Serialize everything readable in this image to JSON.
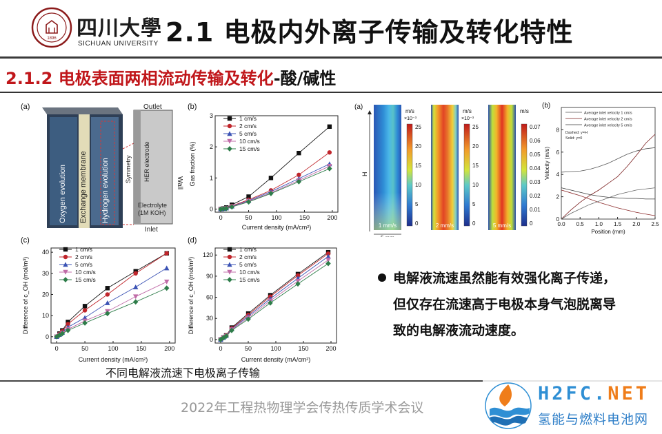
{
  "header": {
    "logo_cn": "四川大學",
    "logo_en": "SICHUAN UNIVERSITY",
    "seal_year": "1896",
    "title": "2.1 电极内外离子传输及转化特性"
  },
  "subtitle": {
    "red_part": "2.1.2 电极表面两相流动传输及转化",
    "dark_part": "-酸/碱性"
  },
  "figure_a": {
    "panel": "(a)",
    "labels": [
      "Oxygen evolution",
      "Exchange membrane",
      "Hydrogen evolution"
    ],
    "schematic": {
      "outlet": "Outlet",
      "inlet": "Inlet",
      "symmetry": "Symmetry",
      "electrode": "HER electrode",
      "wall": "Wall",
      "electrolyte_1": "Electrolyte",
      "electrolyte_2": "(1M KOH)"
    }
  },
  "legend_series": [
    "1 cm/s",
    "2 cm/s",
    "5 cm/s",
    "10 cm/s",
    "15 cm/s"
  ],
  "series_colors": [
    "#111111",
    "#c0252b",
    "#3a52b4",
    "#c06ca8",
    "#2e7d4a"
  ],
  "chart_data": [
    {
      "panel": "(b)",
      "type": "line",
      "xlabel": "Current density (mA/cm²)",
      "ylabel": "Gas fraction (%)",
      "xlim": [
        -10,
        210
      ],
      "ylim": [
        -0.1,
        3.0
      ],
      "xticks": [
        0,
        50,
        100,
        150,
        200
      ],
      "yticks": [
        0,
        1,
        2,
        3
      ],
      "x": [
        0,
        5,
        10,
        20,
        50,
        90,
        140,
        195
      ],
      "series": [
        {
          "name": "1 cm/s",
          "values": [
            0.0,
            0.02,
            0.05,
            0.14,
            0.4,
            1.0,
            1.8,
            2.65
          ]
        },
        {
          "name": "2 cm/s",
          "values": [
            0.0,
            0.01,
            0.03,
            0.1,
            0.3,
            0.6,
            1.1,
            1.82
          ]
        },
        {
          "name": "5 cm/s",
          "values": [
            0.0,
            0.01,
            0.03,
            0.09,
            0.27,
            0.56,
            0.98,
            1.45
          ]
        },
        {
          "name": "10 cm/s",
          "values": [
            0.0,
            0.01,
            0.02,
            0.08,
            0.25,
            0.52,
            0.92,
            1.38
          ]
        },
        {
          "name": "15 cm/s",
          "values": [
            0.0,
            0.01,
            0.02,
            0.07,
            0.23,
            0.5,
            0.88,
            1.3
          ]
        }
      ]
    },
    {
      "panel": "(c)",
      "type": "line",
      "xlabel": "Current density (mA/cm²)",
      "ylabel": "Difference of c_OH (mol/m³)",
      "xlim": [
        -10,
        210
      ],
      "ylim": [
        -3,
        42
      ],
      "xticks": [
        0,
        50,
        100,
        150,
        200
      ],
      "yticks": [
        0,
        10,
        20,
        30,
        40
      ],
      "x": [
        0,
        5,
        10,
        20,
        50,
        90,
        140,
        195
      ],
      "series": [
        {
          "name": "1 cm/s",
          "values": [
            0,
            1.5,
            3,
            7,
            14.5,
            23,
            31,
            39.5
          ]
        },
        {
          "name": "2 cm/s",
          "values": [
            0,
            1.3,
            2.6,
            6,
            12.5,
            20,
            30,
            39.5
          ]
        },
        {
          "name": "5 cm/s",
          "values": [
            0,
            1.0,
            2.0,
            4.5,
            9,
            16,
            23.5,
            32.5
          ]
        },
        {
          "name": "10 cm/s",
          "values": [
            0,
            0.9,
            1.7,
            3.5,
            7.5,
            12,
            19,
            26
          ]
        },
        {
          "name": "15 cm/s",
          "values": [
            0,
            0.8,
            1.5,
            3,
            6.5,
            11,
            16.5,
            23
          ]
        }
      ]
    },
    {
      "panel": "(d)",
      "type": "line",
      "xlabel": "Current density (mA/cm²)",
      "ylabel": "Difference of c_OH (mol/m³)",
      "xlim": [
        -10,
        210
      ],
      "ylim": [
        -5,
        130
      ],
      "xticks": [
        0,
        50,
        100,
        150,
        200
      ],
      "yticks": [
        0,
        30,
        60,
        90,
        120
      ],
      "x": [
        0,
        5,
        10,
        20,
        50,
        90,
        140,
        195
      ],
      "series": [
        {
          "name": "1 cm/s",
          "values": [
            0,
            3,
            6,
            17,
            37,
            63,
            93,
            124
          ]
        },
        {
          "name": "2 cm/s",
          "values": [
            0,
            3,
            6,
            16,
            35,
            61,
            91,
            122
          ]
        },
        {
          "name": "5 cm/s",
          "values": [
            0,
            2.8,
            5.5,
            15,
            33,
            58,
            87,
            118
          ]
        },
        {
          "name": "10 cm/s",
          "values": [
            0,
            2.6,
            5,
            14,
            31,
            55,
            83,
            113
          ]
        },
        {
          "name": "15 cm/s",
          "values": [
            0,
            2.5,
            4.8,
            13,
            29,
            52,
            79,
            108
          ]
        }
      ]
    },
    {
      "panel": "(b)",
      "type": "line",
      "xlabel": "Position (mm)",
      "ylabel": "Velocity (m/s)",
      "xlim": [
        0,
        2.5
      ],
      "ylim": [
        0,
        10
      ],
      "xticks": [
        0.0,
        0.5,
        1.0,
        1.5,
        2.0,
        2.5
      ],
      "yticks": [
        0,
        2,
        4,
        6,
        8
      ],
      "legend": [
        "Average inlet velocity 1 cm/s",
        "Average inlet velocity 2 cm/s",
        "Average inlet velocity 5 cm/s"
      ],
      "notes": [
        "Dashed: y=H",
        "Solid: y=0"
      ],
      "x": [
        0,
        0.25,
        0.5,
        0.75,
        1.0,
        1.25,
        1.5,
        1.75,
        2.0,
        2.25,
        2.5
      ],
      "series": [
        {
          "values": [
            4.2,
            4.25,
            4.3,
            4.45,
            4.7,
            5.0,
            5.4,
            5.8,
            6.1,
            6.3,
            6.4
          ]
        },
        {
          "values": [
            0.0,
            0.8,
            1.5,
            2.1,
            2.6,
            3.2,
            3.8,
            4.7,
            5.7,
            6.8,
            7.6
          ]
        },
        {
          "values": [
            2.8,
            2.6,
            2.4,
            2.2,
            2.05,
            1.95,
            1.9,
            1.85,
            1.85,
            1.8,
            1.8
          ]
        },
        {
          "values": [
            2.6,
            2.35,
            2.1,
            1.8,
            1.5,
            1.25,
            1.0,
            0.8,
            0.6,
            0.45,
            0.3
          ]
        },
        {
          "values": [
            0.0,
            0.5,
            0.9,
            1.3,
            1.6,
            1.9,
            2.2,
            2.4,
            2.6,
            2.7,
            2.8
          ]
        }
      ]
    }
  ],
  "contour_maps": {
    "panel": "(a)",
    "axis_label": "H",
    "scale_label": "5 mm",
    "maps": [
      {
        "label": "1 mm/s",
        "unit": "m/s",
        "exp": "×10⁻³",
        "ticks": [
          25,
          20,
          15,
          10,
          5,
          0
        ]
      },
      {
        "label": "2 mm/s",
        "unit": "m/s",
        "exp": "×10⁻³",
        "ticks": [
          25,
          20,
          15,
          10,
          5,
          0
        ]
      },
      {
        "label": "5 mm/s",
        "unit": "m/s",
        "exp": "",
        "ticks": [
          0.07,
          0.06,
          0.05,
          0.04,
          0.03,
          0.02,
          0.01,
          0
        ]
      }
    ]
  },
  "bullet": {
    "line1": "电解液流速虽然能有效强化离子传递，",
    "line2": "但仅存在流速高于电极本身气泡脱离导",
    "line3": "致的电解液流动速度。"
  },
  "caption": "不同电解液流速下电极离子传输",
  "footer": "2022年工程热物理学会传热传质学术会议",
  "watermark": {
    "en_part1": "H2FC.",
    "en_part2": "NET",
    "cn": "氢能与燃料电池网"
  }
}
